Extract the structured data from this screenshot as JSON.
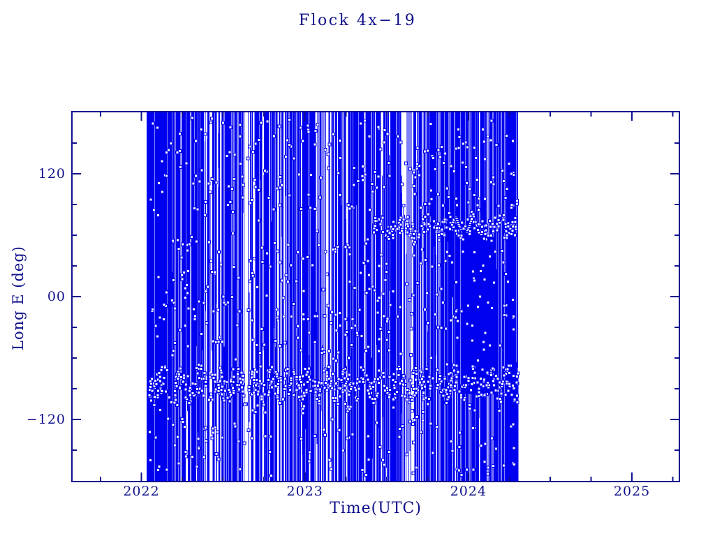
{
  "colors": {
    "axis": "#10108c",
    "data": "#0000f0",
    "background": "#ffffff"
  },
  "chart_data": {
    "type": "scatter",
    "title": "Flock 4x−19",
    "xlabel": "Time(UTC)",
    "ylabel": "Long E (deg)",
    "xlim": [
      2021.575,
      2025.29
    ],
    "ylim": [
      -180.7,
      180.7
    ],
    "x_major_ticks": [
      {
        "value": 2022,
        "label": "2022"
      },
      {
        "value": 2023,
        "label": "2023"
      },
      {
        "value": 2024,
        "label": "2024"
      },
      {
        "value": 2025,
        "label": "2025"
      }
    ],
    "x_minor_tick_step": 0.25,
    "y_major_ticks": [
      {
        "value": 120,
        "label": "120"
      },
      {
        "value": 0,
        "label": "00"
      },
      {
        "value": -120,
        "label": "−120"
      }
    ],
    "y_minor_tick_step": 30,
    "grid": false,
    "legend": null,
    "marker": "open-square",
    "series_color": "#0000f0",
    "data_time_range": [
      2022.034,
      2024.307
    ],
    "description": "Sub-satellite east longitude vs time; rapidly wrapping ground-track longitude renders as dense vertical blue traces with small square markers; dense wavy marker band near -88 deg across the whole span, band near +68 deg after 2023.4, solid dense blob 2023.94-2024.19 between +68 and -95 deg; data ends ~2024.31.",
    "render_seed": 7,
    "density_segments": [
      {
        "t0": 2022.034,
        "t1": 2022.18,
        "lines": 100,
        "full_fraction": 0.8
      },
      {
        "t0": 2022.18,
        "t1": 2022.42,
        "lines": 120,
        "full_fraction": 0.6
      },
      {
        "t0": 2022.42,
        "t1": 2022.63,
        "lines": 90,
        "full_fraction": 0.55
      },
      {
        "t0": 2022.63,
        "t1": 2022.7,
        "lines": 12,
        "full_fraction": 0.3
      },
      {
        "t0": 2022.7,
        "t1": 2023.1,
        "lines": 170,
        "full_fraction": 0.55
      },
      {
        "t0": 2023.1,
        "t1": 2023.17,
        "lines": 14,
        "full_fraction": 0.3
      },
      {
        "t0": 2023.17,
        "t1": 2023.45,
        "lines": 130,
        "full_fraction": 0.5
      },
      {
        "t0": 2023.45,
        "t1": 2023.59,
        "lines": 70,
        "full_fraction": 0.5
      },
      {
        "t0": 2023.59,
        "t1": 2023.67,
        "lines": 12,
        "full_fraction": 0.25
      },
      {
        "t0": 2023.67,
        "t1": 2023.83,
        "lines": 70,
        "full_fraction": 0.45
      },
      {
        "t0": 2023.83,
        "t1": 2023.94,
        "lines": 55,
        "full_fraction": 0.5
      },
      {
        "t0": 2023.94,
        "t1": 2024.19,
        "lines": 140,
        "full_fraction": 0.6
      },
      {
        "t0": 2024.19,
        "t1": 2024.307,
        "lines": 80,
        "full_fraction": 0.6
      }
    ],
    "solid_blocks": [
      {
        "t0": 2022.042,
        "t1": 2022.068,
        "y_top": 180.7,
        "y_bot": -180.7
      },
      {
        "t0": 2022.1,
        "t1": 2022.118,
        "y_top": 180.7,
        "y_bot": -180.7
      },
      {
        "t0": 2022.133,
        "t1": 2022.148,
        "y_top": 180.7,
        "y_bot": -180.7
      },
      {
        "t0": 2022.255,
        "t1": 2022.266,
        "y_top": 180.7,
        "y_bot": -180.7
      },
      {
        "t0": 2022.82,
        "t1": 2022.83,
        "y_top": 180.7,
        "y_bot": -180.7
      },
      {
        "t0": 2023.3,
        "t1": 2023.308,
        "y_top": 180.7,
        "y_bot": -180.7
      },
      {
        "t0": 2023.955,
        "t1": 2024.1,
        "y_top": 68,
        "y_bot": -95
      },
      {
        "t0": 2024.1,
        "t1": 2024.165,
        "y_top": 58,
        "y_bot": -95
      },
      {
        "t0": 2024.21,
        "t1": 2024.22,
        "y_top": 180.7,
        "y_bot": -180.7
      },
      {
        "t0": 2024.272,
        "t1": 2024.281,
        "y_top": 180.7,
        "y_bot": -180.7
      }
    ],
    "marker_bands": [
      {
        "t0": 2022.04,
        "t1": 2024.3,
        "y_center": -86,
        "y_jitter": 14,
        "wobble_amp": 6,
        "wobble_freq": 9,
        "count": 620
      },
      {
        "t0": 2023.42,
        "t1": 2024.3,
        "y_center": 68,
        "y_jitter": 9,
        "wobble_amp": 4,
        "wobble_freq": 7,
        "count": 230
      },
      {
        "t0": 2022.05,
        "t1": 2024.28,
        "y_center": 130,
        "y_jitter": 45,
        "wobble_amp": 0,
        "wobble_freq": 0,
        "count": 150
      },
      {
        "t0": 2022.05,
        "t1": 2024.28,
        "y_center": 0,
        "y_jitter": 55,
        "wobble_amp": 0,
        "wobble_freq": 0,
        "count": 160
      },
      {
        "t0": 2022.05,
        "t1": 2024.28,
        "y_center": -140,
        "y_jitter": 35,
        "wobble_amp": 0,
        "wobble_freq": 0,
        "count": 90
      }
    ],
    "arcs": [
      {
        "t0": 2023.928,
        "t1": 2024.02,
        "y_top": 76,
        "dip": 14,
        "count": 22
      }
    ]
  }
}
